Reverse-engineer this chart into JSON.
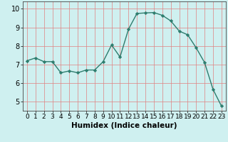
{
  "x": [
    0,
    1,
    2,
    3,
    4,
    5,
    6,
    7,
    8,
    9,
    10,
    11,
    12,
    13,
    14,
    15,
    16,
    17,
    18,
    19,
    20,
    21,
    22,
    23
  ],
  "y": [
    7.2,
    7.35,
    7.15,
    7.15,
    6.55,
    6.65,
    6.55,
    6.7,
    6.7,
    7.15,
    8.05,
    7.4,
    8.9,
    9.75,
    9.78,
    9.8,
    9.65,
    9.35,
    8.8,
    8.6,
    7.9,
    7.1,
    5.65,
    4.75
  ],
  "line_color": "#2e7d6e",
  "marker": "D",
  "marker_size": 2.2,
  "background_color": "#cff0f0",
  "grid_color": "#e08080",
  "xlabel": "Humidex (Indice chaleur)",
  "xlabel_fontsize": 7.5,
  "ylabel_fontsize": 7,
  "ylim": [
    4.5,
    10.4
  ],
  "xlim": [
    -0.5,
    23.5
  ],
  "yticks": [
    5,
    6,
    7,
    8,
    9,
    10
  ],
  "xticks": [
    0,
    1,
    2,
    3,
    4,
    5,
    6,
    7,
    8,
    9,
    10,
    11,
    12,
    13,
    14,
    15,
    16,
    17,
    18,
    19,
    20,
    21,
    22,
    23
  ],
  "tick_fontsize": 6.5,
  "linewidth": 1.0
}
